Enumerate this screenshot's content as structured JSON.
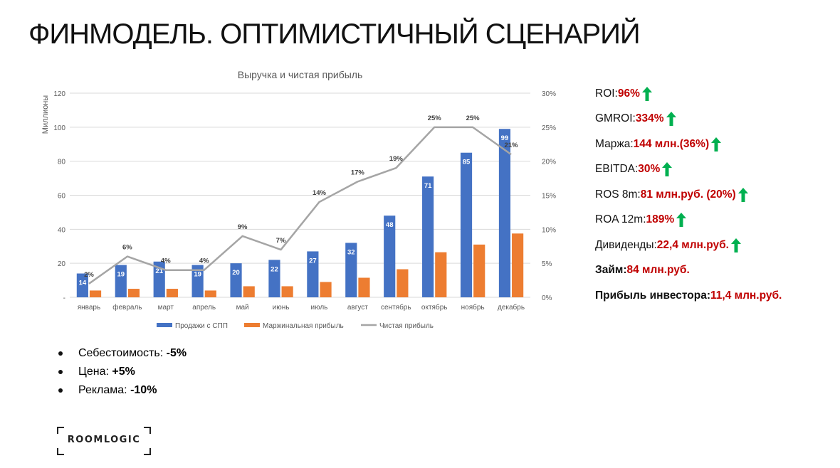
{
  "title": "ФИНМОДЕЛЬ. ОПТИМИСТИЧНЫЙ СЦЕНАРИЙ",
  "chart_data": {
    "type": "bar",
    "title": "Выручка и чистая прибыль",
    "ylabel": "Миллионы",
    "ylim": [
      0,
      120
    ],
    "y_ticks": [
      "-",
      "20",
      "40",
      "60",
      "80",
      "100",
      "120"
    ],
    "y2lim": [
      0,
      30
    ],
    "y2_ticks": [
      "0%",
      "5%",
      "10%",
      "15%",
      "20%",
      "25%",
      "30%"
    ],
    "categories": [
      "январь",
      "февраль",
      "март",
      "апрель",
      "май",
      "июнь",
      "июль",
      "август",
      "сентябрь",
      "октябрь",
      "ноябрь",
      "декабрь"
    ],
    "series": [
      {
        "name": "Продажи с СПП",
        "type": "bar",
        "axis": "left",
        "color": "#4472c4",
        "values": [
          14,
          19,
          21,
          19,
          20,
          22,
          27,
          32,
          48,
          71,
          85,
          99
        ],
        "labels": [
          "14",
          "19",
          "21",
          "19",
          "20",
          "22",
          "27",
          "32",
          "48",
          "71",
          "85",
          "99"
        ]
      },
      {
        "name": "Маржинальная прибыль",
        "type": "bar",
        "axis": "left",
        "color": "#ed7d31",
        "values": [
          4,
          5,
          5,
          4,
          6.5,
          6.5,
          9,
          11.5,
          16.5,
          26.5,
          31,
          37.5
        ]
      },
      {
        "name": "Чистая прибыль",
        "type": "line",
        "axis": "right",
        "color": "#a5a5a5",
        "values": [
          2,
          6,
          4,
          4,
          9,
          7,
          14,
          17,
          19,
          25,
          25,
          21
        ],
        "labels": [
          "2%",
          "6%",
          "4%",
          "4%",
          "9%",
          "7%",
          "14%",
          "17%",
          "19%",
          "25%",
          "25%",
          "21%"
        ]
      }
    ],
    "legend_position": "bottom",
    "grid": true
  },
  "kpis": [
    {
      "label": "ROI: ",
      "value": "96%",
      "arrow": true,
      "bold_label": false
    },
    {
      "label": "GMROI: ",
      "value": "334%",
      "arrow": true,
      "bold_label": false
    },
    {
      "label": "Маржа: ",
      "value": "144 млн.(36%)",
      "arrow": true,
      "bold_label": false
    },
    {
      "label": "EBITDA: ",
      "value": "30%",
      "arrow": true,
      "bold_label": false
    },
    {
      "label": "ROS 8m: ",
      "value": "81 млн.руб. (20%)",
      "arrow": true,
      "bold_label": false
    },
    {
      "label": "ROA 12m: ",
      "value": "189% ",
      "arrow": true,
      "bold_label": false
    },
    {
      "label": "Дивиденды: ",
      "value": "22,4 млн.руб.",
      "arrow": true,
      "bold_label": false
    },
    {
      "label": "Займ: ",
      "value": "84 млн.руб.",
      "arrow": false,
      "bold_label": true
    },
    {
      "label": "Прибыль инвестора: ",
      "value": "11,4 млн.руб.",
      "arrow": false,
      "bold_label": true
    }
  ],
  "arrow_color": "#00b050",
  "assumptions": [
    {
      "label": "Себестоимость: ",
      "value": "-5%"
    },
    {
      "label": "Цена: ",
      "value": "+5%"
    },
    {
      "label": "Реклама: ",
      "value": "-10%"
    }
  ],
  "logo_text": "ROOMLOGIC"
}
